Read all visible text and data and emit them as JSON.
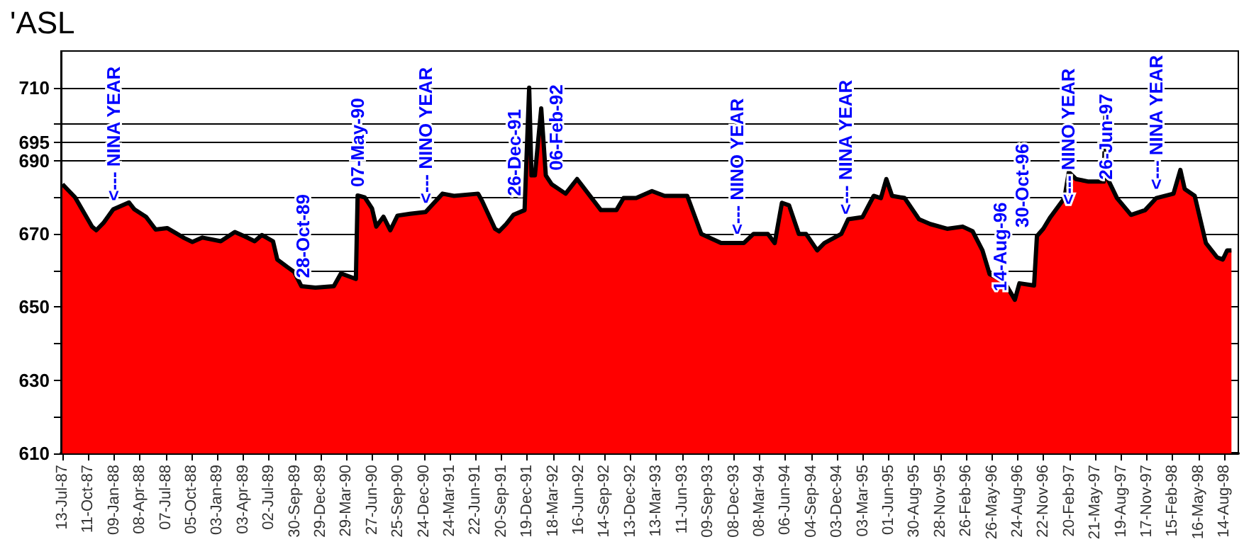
{
  "chart_data": {
    "type": "area",
    "title": "'ASL",
    "x": [
      "1987-07-13",
      "1987-08-26",
      "1987-10-24",
      "1987-11-08",
      "1987-12-03",
      "1988-01-06",
      "1988-03-01",
      "1988-03-20",
      "1988-04-29",
      "1988-06-02",
      "1988-07-12",
      "1988-09-09",
      "1988-10-08",
      "1988-11-12",
      "1989-01-15",
      "1989-03-05",
      "1989-04-09",
      "1989-05-13",
      "1989-06-07",
      "1989-07-16",
      "1989-07-31",
      "1989-09-03",
      "1989-09-28",
      "1989-10-23",
      "1989-12-11",
      "1990-02-13",
      "1990-03-10",
      "1990-05-01",
      "1990-05-07",
      "1990-06-01",
      "1990-06-26",
      "1990-07-11",
      "1990-08-05",
      "1990-08-29",
      "1990-09-23",
      "1990-11-06",
      "1990-12-30",
      "1991-02-27",
      "1991-04-08",
      "1991-07-01",
      "1991-07-15",
      "1991-08-29",
      "1991-09-12",
      "1991-10-07",
      "1991-11-01",
      "1991-12-10",
      "1991-12-26",
      "1992-01-03",
      "1992-01-15",
      "1992-02-06",
      "1992-02-22",
      "1992-03-13",
      "1992-05-01",
      "1992-06-10",
      "1992-07-19",
      "1992-09-01",
      "1992-10-25",
      "1992-11-19",
      "1993-01-02",
      "1993-02-26",
      "1993-04-11",
      "1993-06-29",
      "1993-08-17",
      "1993-10-25",
      "1994-01-12",
      "1994-02-15",
      "1994-04-06",
      "1994-04-30",
      "1994-05-25",
      "1994-06-19",
      "1994-07-23",
      "1994-08-17",
      "1994-09-25",
      "1994-10-20",
      "1994-12-18",
      "1995-01-11",
      "1995-03-02",
      "1995-04-10",
      "1995-05-05",
      "1995-05-24",
      "1995-06-13",
      "1995-07-27",
      "1995-09-15",
      "1995-10-24",
      "1995-12-22",
      "1996-02-14",
      "1996-03-20",
      "1996-04-23",
      "1996-05-18",
      "1996-07-06",
      "1996-08-14",
      "1996-08-30",
      "1996-10-20",
      "1996-10-30",
      "1996-11-21",
      "1996-12-16",
      "1997-02-03",
      "1997-02-18",
      "1997-03-15",
      "1997-04-28",
      "1997-06-20",
      "1997-06-26",
      "1997-07-04",
      "1997-08-05",
      "1997-09-23",
      "1997-11-11",
      "1997-12-20",
      "1998-02-18",
      "1998-03-14",
      "1998-03-29",
      "1998-05-03",
      "1998-06-11",
      "1998-07-20",
      "1998-08-09",
      "1998-08-24",
      "1998-09-08"
    ],
    "values": [
      683.6,
      680,
      672,
      671,
      673,
      676.7,
      678.6,
      676.7,
      674.7,
      671.2,
      671.6,
      668.9,
      667.8,
      669,
      668,
      670.5,
      669.3,
      668,
      669.7,
      668,
      663,
      661,
      659.6,
      655.7,
      655.3,
      655.7,
      659.2,
      657.7,
      680.5,
      680,
      677,
      672,
      674.7,
      671,
      675,
      675.5,
      676,
      681,
      680.4,
      681,
      679,
      671.4,
      670.7,
      672.7,
      675.2,
      676.5,
      710,
      686,
      686,
      704.3,
      686,
      683.6,
      681,
      685,
      681,
      676.5,
      676.5,
      679.8,
      679.8,
      681.7,
      680.4,
      680.4,
      670,
      667.5,
      667.5,
      670,
      670,
      667.5,
      678.5,
      677.8,
      670,
      670,
      665.5,
      667.5,
      670,
      674,
      674.6,
      680.4,
      679.8,
      685,
      680.4,
      679.8,
      674,
      672.7,
      671.4,
      672,
      670.7,
      665.5,
      659,
      657.2,
      652,
      656.5,
      655.9,
      669.4,
      671.4,
      674.6,
      679.8,
      686.9,
      685,
      684.3,
      684.3,
      704.3,
      685,
      679.8,
      675.2,
      676.5,
      679.8,
      681,
      687.5,
      682.3,
      680.4,
      667.5,
      663.6,
      663,
      665.5,
      665.5
    ],
    "color": "#ff0000",
    "xlim": [
      "1987-07-08",
      "1998-10-02"
    ],
    "xticks": [
      {
        "value": "1987-07-13",
        "label": "13-Jul-87"
      },
      {
        "value": "1987-10-11",
        "label": "11-Oct-87"
      },
      {
        "value": "1988-01-09",
        "label": "09-Jan-88"
      },
      {
        "value": "1988-04-08",
        "label": "08-Apr-88"
      },
      {
        "value": "1988-07-07",
        "label": "07-Jul-88"
      },
      {
        "value": "1988-10-05",
        "label": "05-Oct-88"
      },
      {
        "value": "1989-01-03",
        "label": "03-Jan-89"
      },
      {
        "value": "1989-04-03",
        "label": "03-Apr-89"
      },
      {
        "value": "1989-07-02",
        "label": "02-Jul-89"
      },
      {
        "value": "1989-09-30",
        "label": "30-Sep-89"
      },
      {
        "value": "1989-12-29",
        "label": "29-Dec-89"
      },
      {
        "value": "1990-03-29",
        "label": "29-Mar-90"
      },
      {
        "value": "1990-06-27",
        "label": "27-Jun-90"
      },
      {
        "value": "1990-09-25",
        "label": "25-Sep-90"
      },
      {
        "value": "1990-12-24",
        "label": "24-Dec-90"
      },
      {
        "value": "1991-03-24",
        "label": "24-Mar-91"
      },
      {
        "value": "1991-06-22",
        "label": "22-Jun-91"
      },
      {
        "value": "1991-09-20",
        "label": "20-Sep-91"
      },
      {
        "value": "1991-12-19",
        "label": "19-Dec-91"
      },
      {
        "value": "1992-03-18",
        "label": "18-Mar-92"
      },
      {
        "value": "1992-06-16",
        "label": "16-Jun-92"
      },
      {
        "value": "1992-09-14",
        "label": "14-Sep-92"
      },
      {
        "value": "1992-12-13",
        "label": "13-Dec-92"
      },
      {
        "value": "1993-03-13",
        "label": "13-Mar-93"
      },
      {
        "value": "1993-06-11",
        "label": "11-Jun-93"
      },
      {
        "value": "1993-09-09",
        "label": "09-Sep-93"
      },
      {
        "value": "1993-12-08",
        "label": "08-Dec-93"
      },
      {
        "value": "1994-03-08",
        "label": "08-Mar-94"
      },
      {
        "value": "1994-06-06",
        "label": "06-Jun-94"
      },
      {
        "value": "1994-09-04",
        "label": "04-Sep-94"
      },
      {
        "value": "1994-12-03",
        "label": "03-Dec-94"
      },
      {
        "value": "1995-03-03",
        "label": "03-Mar-95"
      },
      {
        "value": "1995-06-01",
        "label": "01-Jun-95"
      },
      {
        "value": "1995-08-30",
        "label": "30-Aug-95"
      },
      {
        "value": "1995-11-28",
        "label": "28-Nov-95"
      },
      {
        "value": "1996-02-26",
        "label": "26-Feb-96"
      },
      {
        "value": "1996-05-26",
        "label": "26-May-96"
      },
      {
        "value": "1996-08-24",
        "label": "24-Aug-96"
      },
      {
        "value": "1996-11-22",
        "label": "22-Nov-96"
      },
      {
        "value": "1997-02-20",
        "label": "20-Feb-97"
      },
      {
        "value": "1997-05-21",
        "label": "21-May-97"
      },
      {
        "value": "1997-08-19",
        "label": "19-Aug-97"
      },
      {
        "value": "1997-11-17",
        "label": "17-Nov-97"
      },
      {
        "value": "1998-02-15",
        "label": "15-Feb-98"
      },
      {
        "value": "1998-05-16",
        "label": "16-May-98"
      },
      {
        "value": "1998-08-14",
        "label": "14-Aug-98"
      }
    ],
    "ylim": [
      610,
      720
    ],
    "yticks": [
      610,
      {
        "value": 620,
        "label": null
      },
      630,
      {
        "value": 640,
        "label": null
      },
      650,
      {
        "value": 660,
        "label": null
      },
      670,
      {
        "value": 680,
        "label": null
      },
      690,
      695,
      {
        "value": 700,
        "label": null
      },
      710
    ],
    "grid": "y",
    "annotations": [
      {
        "text": "<--- NINA YEAR",
        "x": "1988-01-06",
        "y": 676.7
      },
      {
        "text": "28-Oct-89",
        "x": "1989-10-28",
        "y": 655.6
      },
      {
        "text": "07-May-90",
        "x": "1990-05-07",
        "y": 680.5
      },
      {
        "text": "<--- NINO YEAR",
        "x": "1990-12-30",
        "y": 676
      },
      {
        "text": "26-Dec-91",
        "x": "1991-12-26",
        "y": 678
      },
      {
        "text": "06-Feb-92",
        "x": "1992-02-06",
        "y": 685
      },
      {
        "text": "<--- NINO YEAR",
        "x": "1993-12-18",
        "y": 667.5
      },
      {
        "text": "<--- NINA YEAR",
        "x": "1995-01-02",
        "y": 673
      },
      {
        "text": "14-Aug-96",
        "x": "1996-08-14",
        "y": 652
      },
      {
        "text": "30-Oct-96",
        "x": "1996-10-30",
        "y": 669.4
      },
      {
        "text": "<--- NINO YEAR",
        "x": "1996-12-26",
        "y": 675.7
      },
      {
        "text": "26-Jun-97",
        "x": "1997-06-26",
        "y": 682.5
      },
      {
        "text": "<--- NINA YEAR",
        "x": "1997-12-20",
        "y": 679.8
      }
    ]
  }
}
